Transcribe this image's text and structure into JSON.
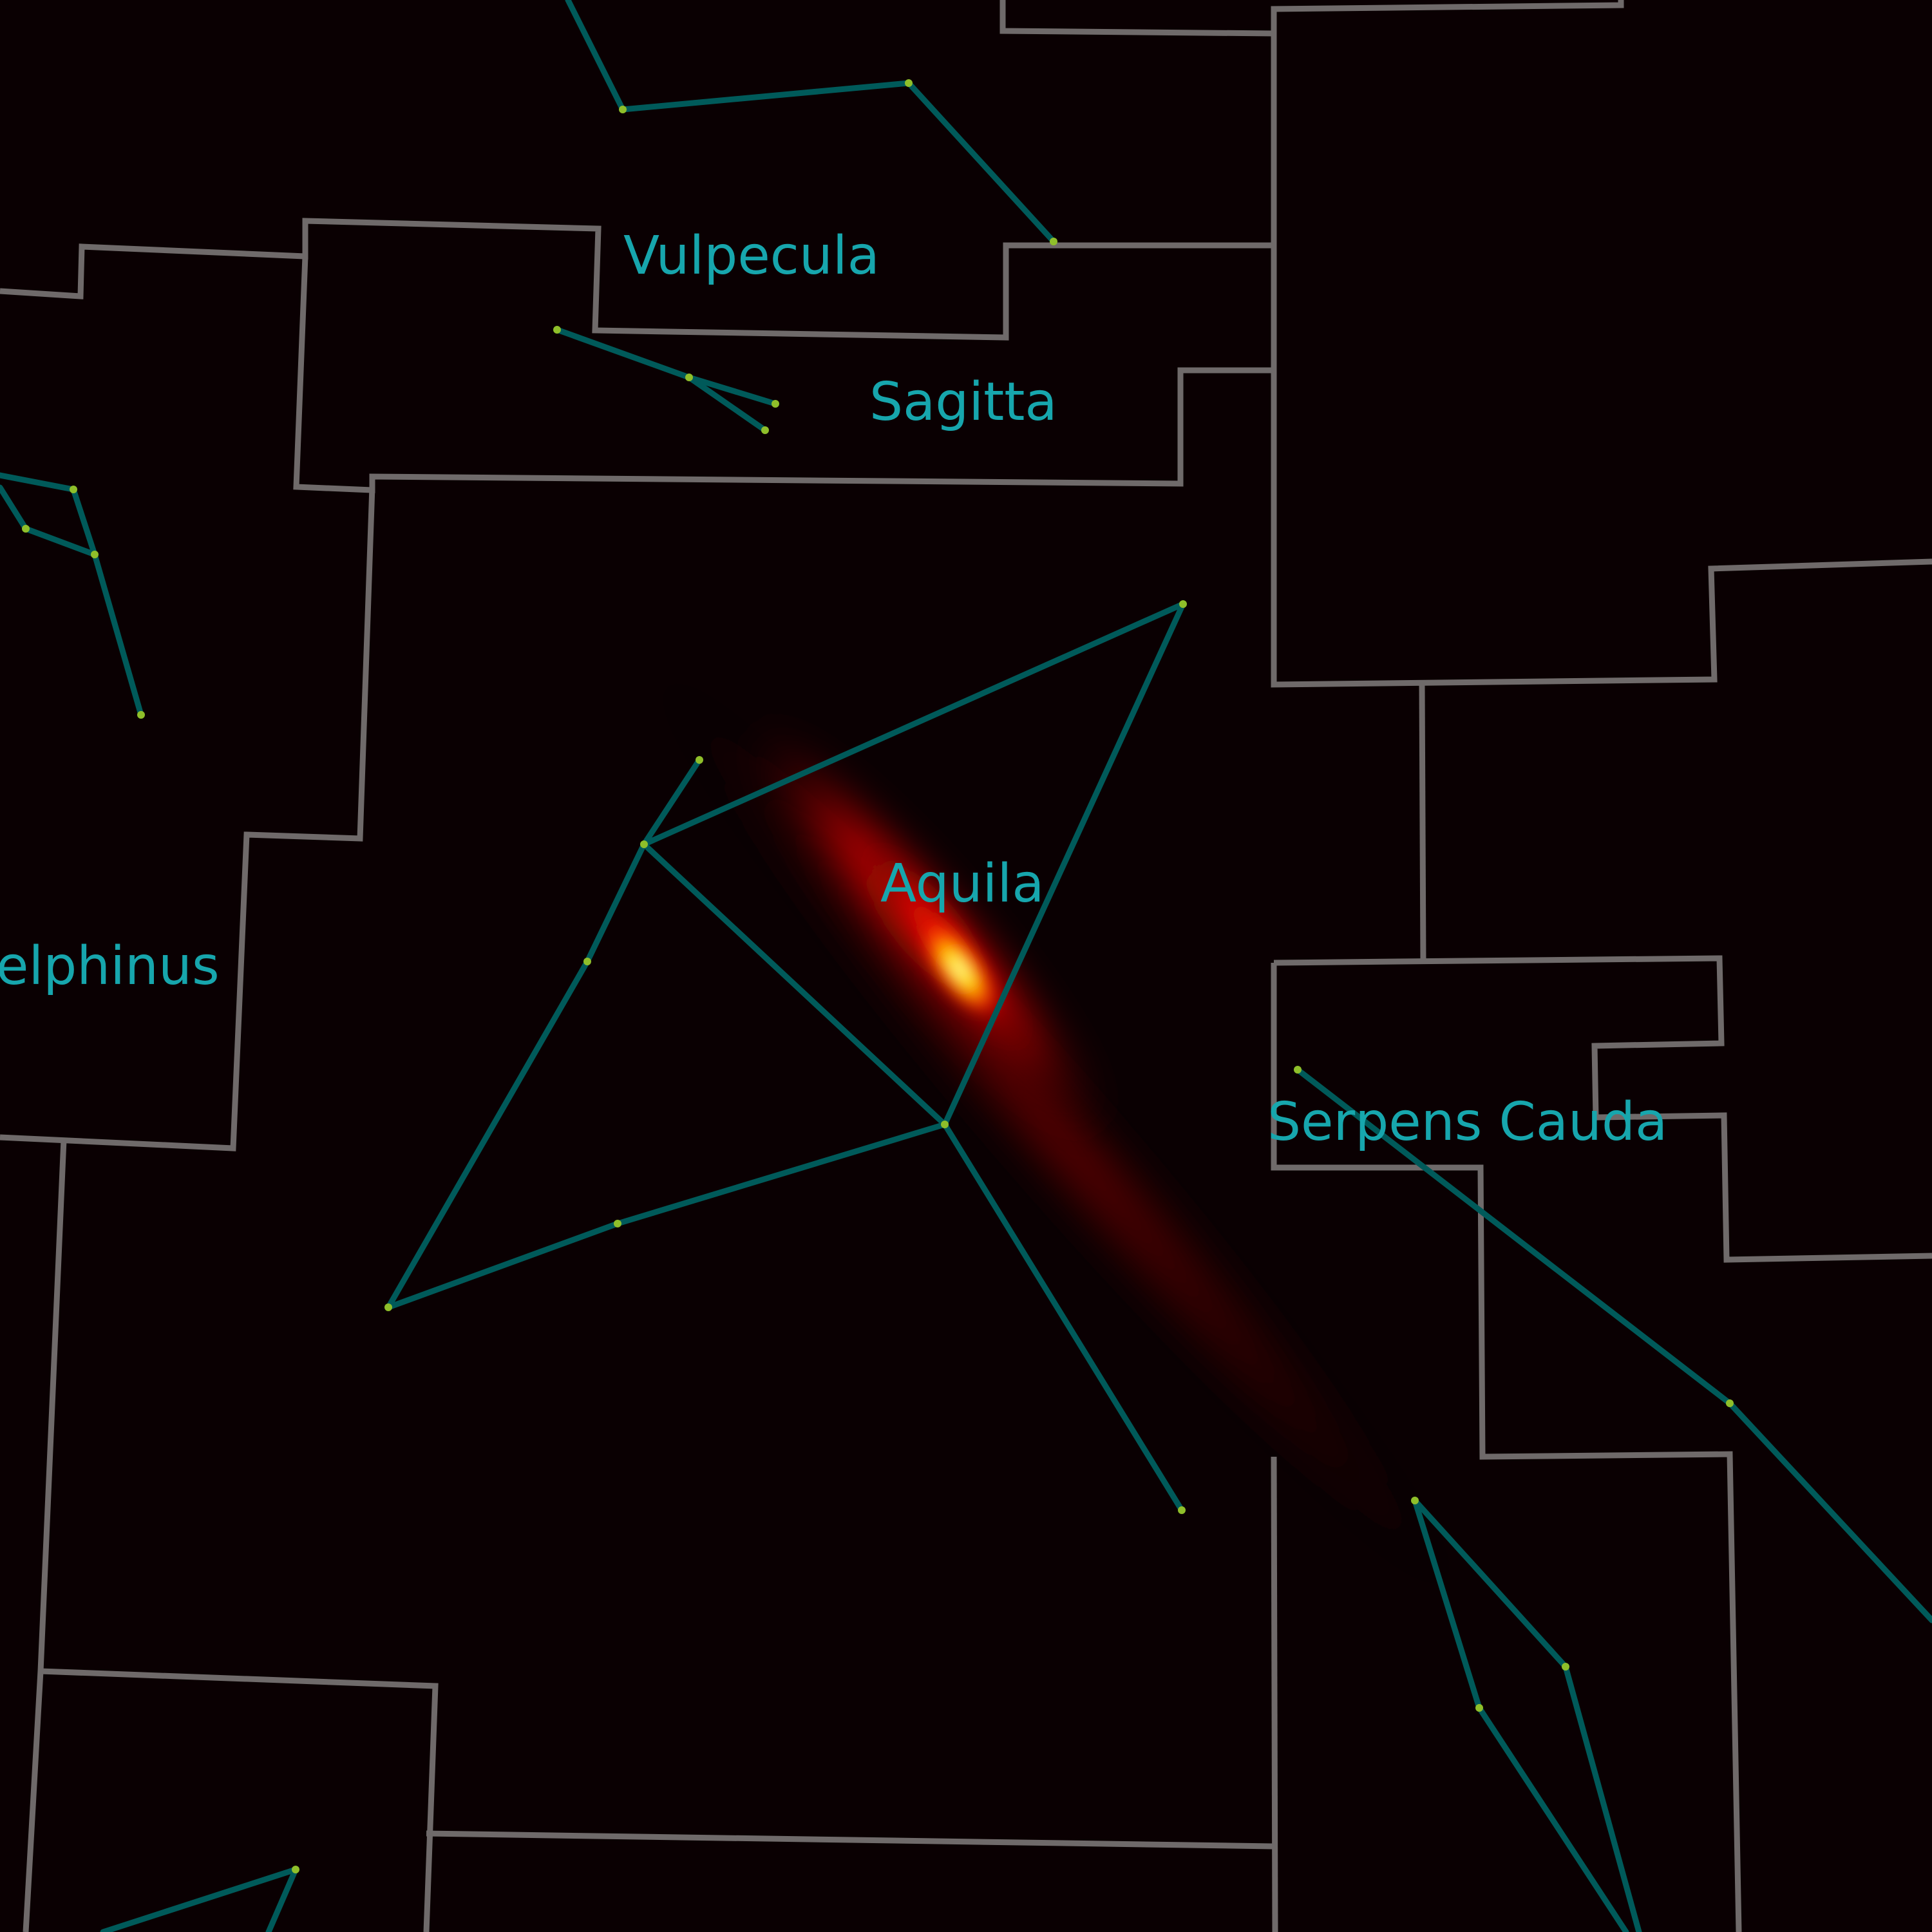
{
  "colors": {
    "background": "#0a0002",
    "boundary": "#6f6a6a",
    "figure_line": "#005a5a",
    "star": "#8fbf2a",
    "label": "#17a6ad",
    "glow_core": "#ffffc8",
    "glow_mid": "#ff1a00",
    "glow_outer": "#6a0000"
  },
  "constellation_labels": {
    "vulpecula": "Vulpecula",
    "sagitta": "Sagitta",
    "aquila": "Aquila",
    "delphinus": "elphinus",
    "serpens_cauda": "Serpens Cauda"
  },
  "overlay": {
    "type": "elongated-probability-heatmap",
    "colormap": "hot"
  }
}
